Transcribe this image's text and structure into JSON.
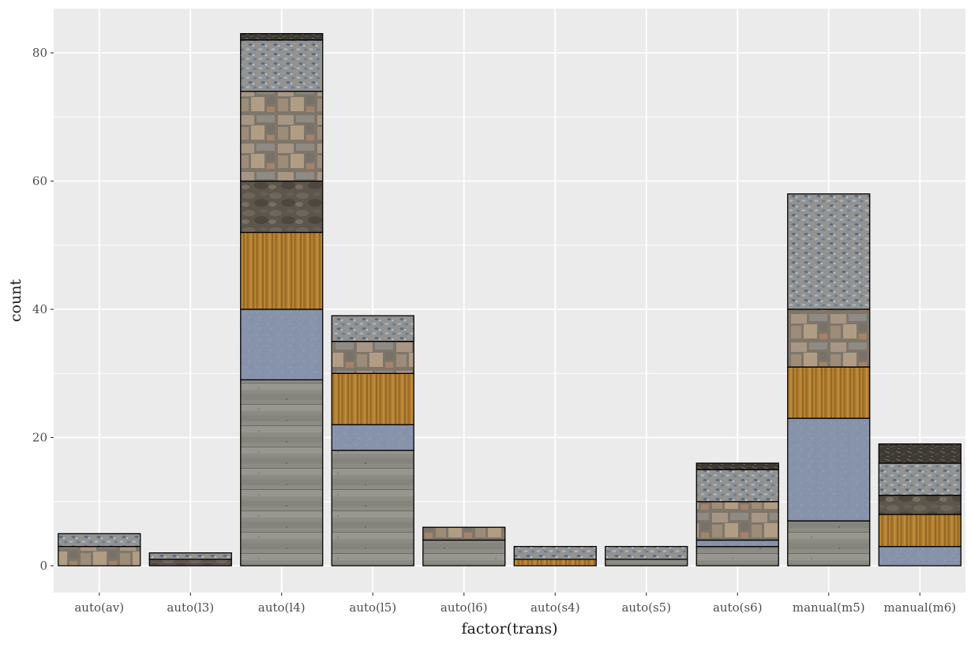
{
  "chart_data": {
    "type": "bar",
    "stacked": true,
    "xlabel": "factor(trans)",
    "ylabel": "count",
    "ylim": [
      -4,
      86
    ],
    "yticks": [
      0,
      20,
      40,
      60,
      80
    ],
    "grid": true,
    "legend": "none",
    "categories": [
      "auto(av)",
      "auto(l3)",
      "auto(l4)",
      "auto(l5)",
      "auto(l6)",
      "auto(s4)",
      "auto(s5)",
      "auto(s6)",
      "manual(m5)",
      "manual(m6)"
    ],
    "series": [
      {
        "values": [
          0,
          0,
          29,
          18,
          4,
          0,
          1,
          3,
          7,
          0
        ]
      },
      {
        "values": [
          0,
          0,
          11,
          4,
          0,
          0,
          0,
          1,
          16,
          3
        ]
      },
      {
        "values": [
          0,
          0,
          12,
          8,
          0,
          1,
          0,
          0,
          8,
          5
        ]
      },
      {
        "values": [
          0,
          1,
          8,
          0,
          0,
          0,
          0,
          0,
          0,
          3
        ]
      },
      {
        "values": [
          3,
          0,
          14,
          5,
          2,
          0,
          0,
          6,
          9,
          0
        ]
      },
      {
        "values": [
          2,
          1,
          8,
          4,
          0,
          2,
          2,
          5,
          18,
          5
        ]
      },
      {
        "values": [
          0,
          0,
          1,
          0,
          0,
          0,
          0,
          1,
          0,
          3
        ]
      }
    ],
    "series_textures": [
      "concrete-planks",
      "blue-asphalt",
      "wood-grain",
      "dark-rock",
      "flagstone",
      "gravel",
      "dark-mulch"
    ],
    "colors": {
      "panel_background": "#ebebeb",
      "grid": "#ffffff",
      "bar_outline": "#000000",
      "concrete-planks": "#8d8c84",
      "blue-asphalt": "#8793ab",
      "wood-grain": "#b07f32",
      "dark-rock": "#5d564c",
      "flagstone": "#9a8a78",
      "gravel": "#8f9396",
      "dark-mulch": "#3e3a34"
    }
  }
}
